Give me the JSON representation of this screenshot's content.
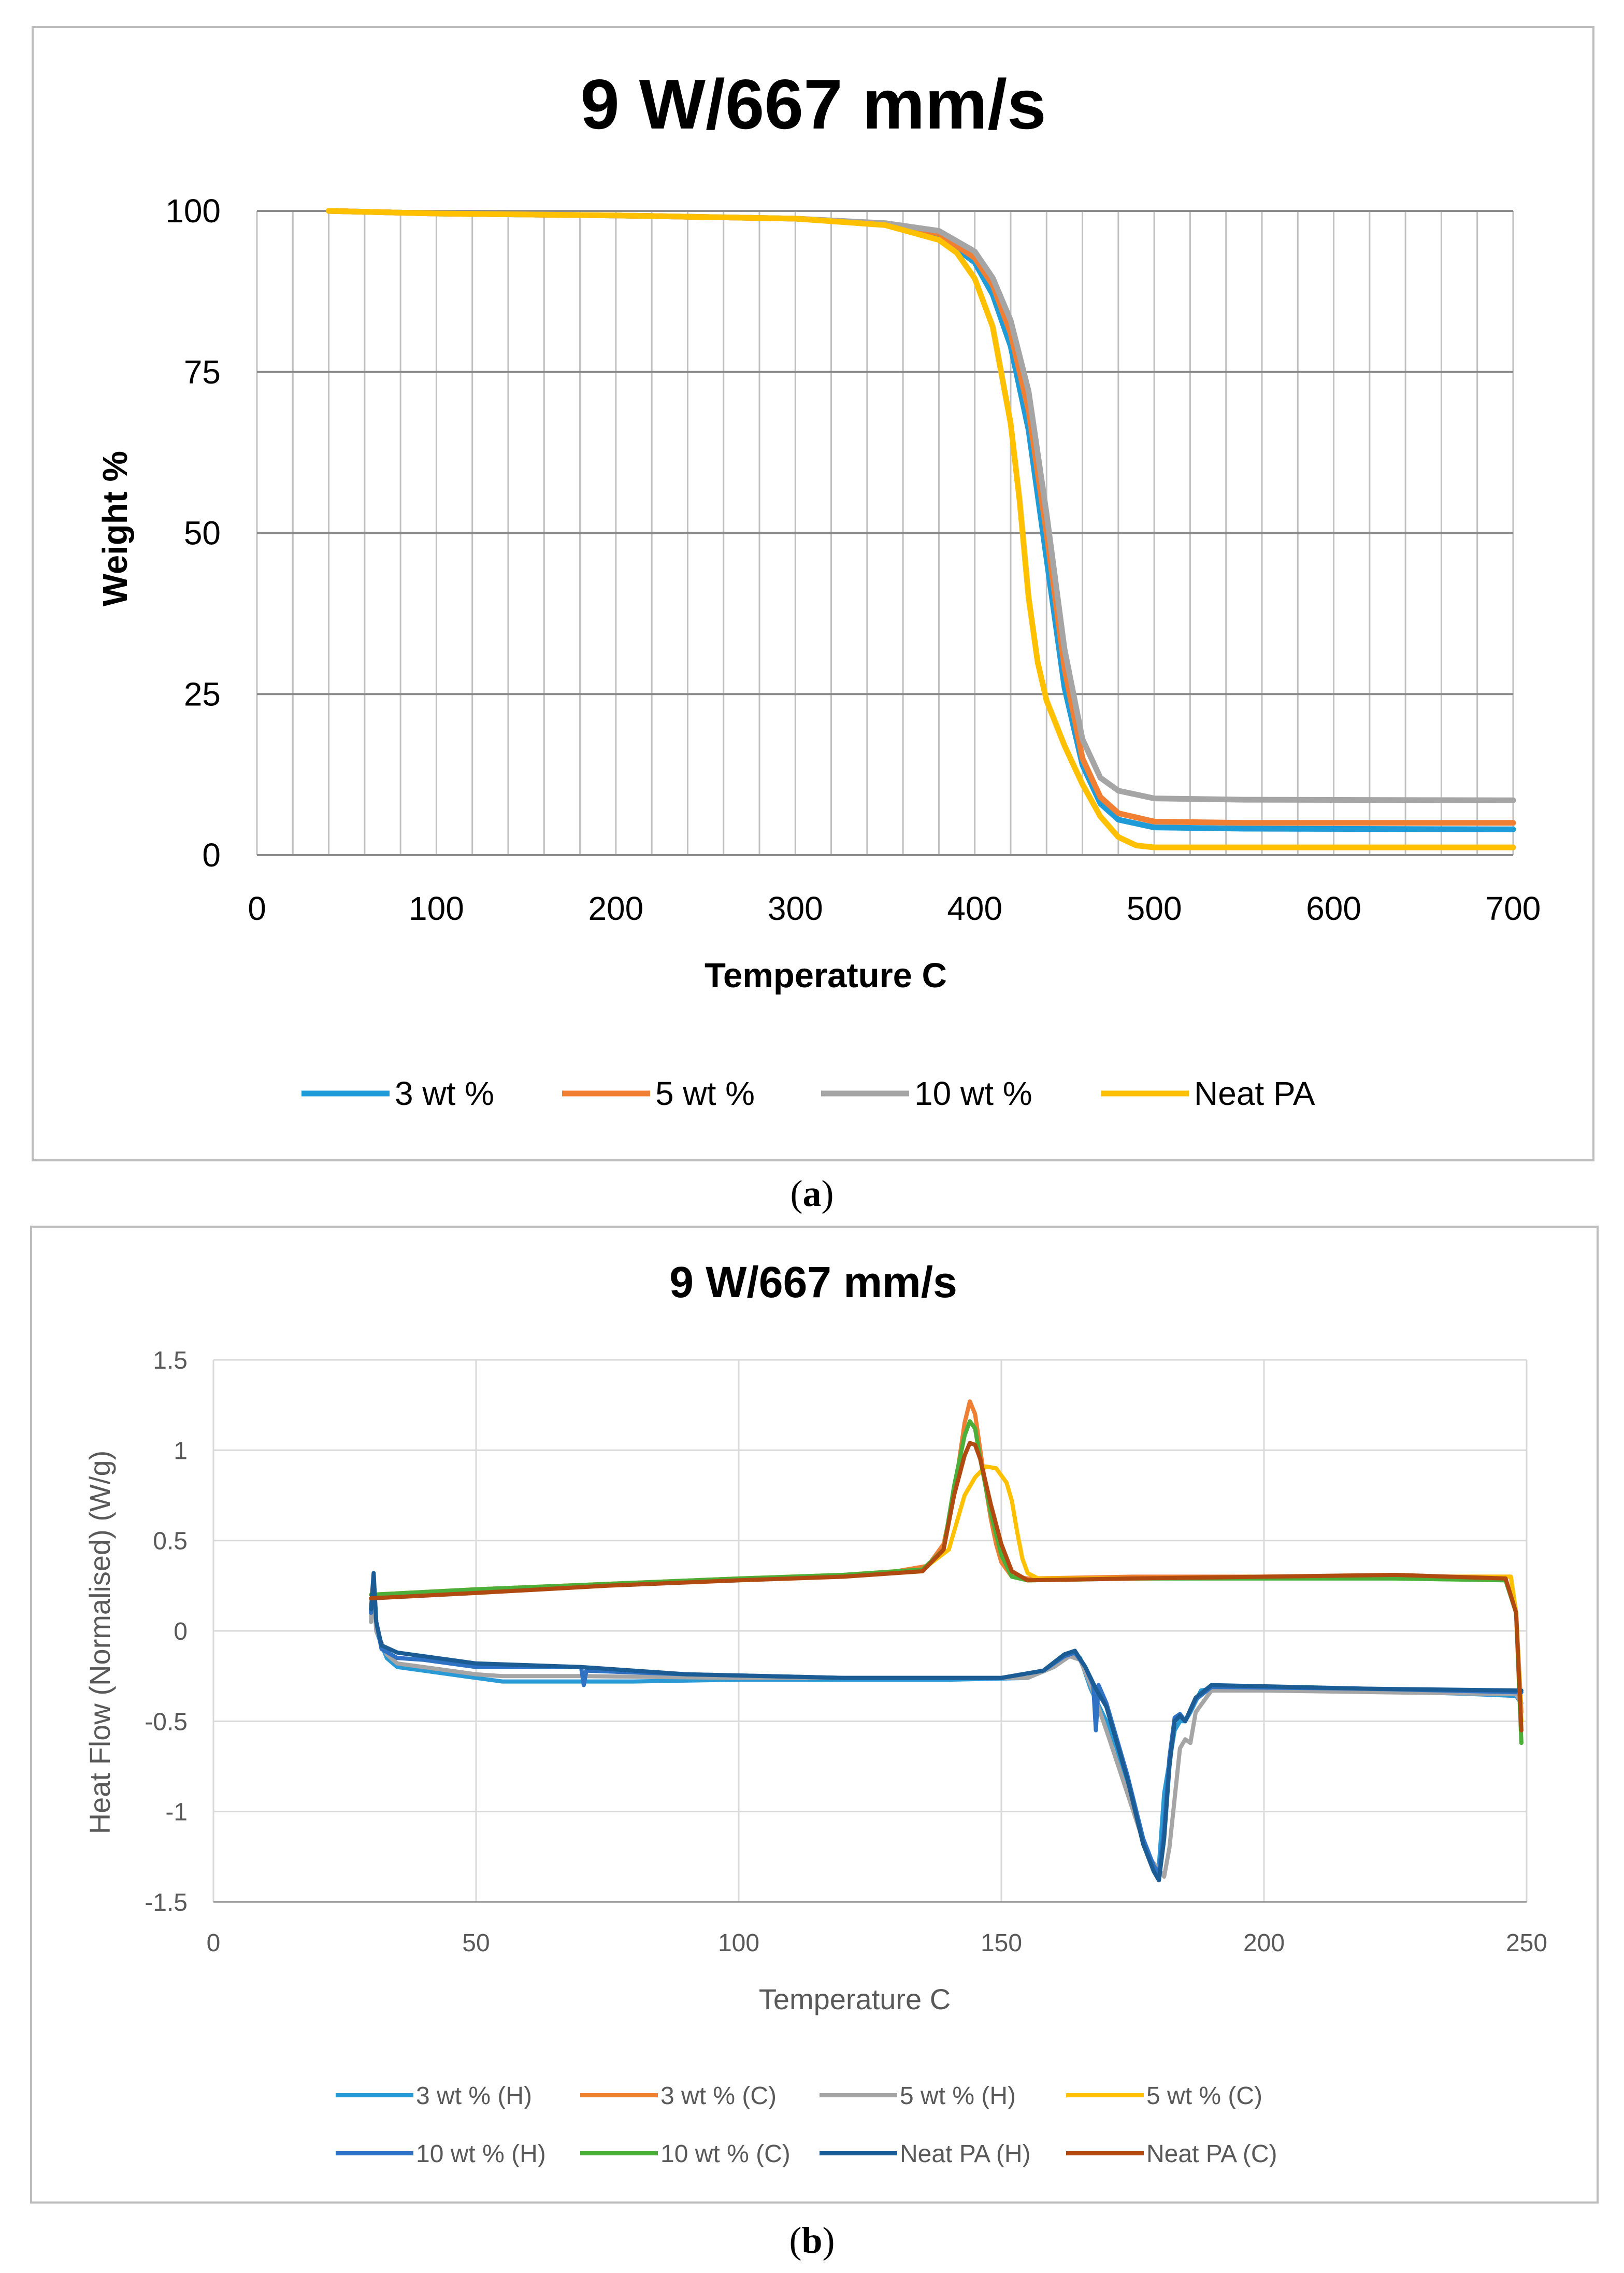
{
  "colors": {
    "c3": "#1f9bd8",
    "c5": "#f07e33",
    "c10": "#a5a5a5",
    "cneat": "#ffc000",
    "dsc_3h": "#2a9ad6",
    "dsc_3c": "#f07e33",
    "dsc_5h": "#a5a5a5",
    "dsc_5c": "#ffc000",
    "dsc_10h": "#2f72c4",
    "dsc_10c": "#4caf3a",
    "dsc_neath": "#1c5c94",
    "dsc_neatc": "#b04a10"
  },
  "captions": {
    "a": "a",
    "b": "b"
  },
  "chart_data": [
    {
      "type": "line",
      "panel": "a",
      "title": "9 W/667 mm/s",
      "xlabel": "Temperature C",
      "ylabel": "Weight %",
      "xlim": [
        0,
        700
      ],
      "ylim": [
        0,
        100
      ],
      "xticks": [
        0,
        100,
        200,
        300,
        400,
        500,
        600,
        700
      ],
      "yticks": [
        0,
        25,
        50,
        75,
        100
      ],
      "grid": "vertical every 20 and horizontal at y ticks",
      "legend": "bottom",
      "series": [
        {
          "name": "3 wt %",
          "color": "c3",
          "x": [
            40,
            100,
            200,
            300,
            350,
            380,
            400,
            410,
            420,
            430,
            440,
            450,
            460,
            470,
            480,
            500,
            550,
            700
          ],
          "y": [
            100,
            99.6,
            99.3,
            98.8,
            97.9,
            96.2,
            92,
            87,
            79,
            66,
            46,
            26,
            14,
            8,
            5.5,
            4.3,
            4.1,
            4
          ]
        },
        {
          "name": "5 wt %",
          "color": "c5",
          "x": [
            40,
            100,
            200,
            300,
            350,
            380,
            400,
            410,
            420,
            430,
            440,
            450,
            460,
            470,
            480,
            500,
            550,
            700
          ],
          "y": [
            100,
            99.6,
            99.3,
            98.8,
            98,
            96.5,
            92.7,
            88.5,
            81,
            69,
            50,
            29,
            15,
            9,
            6.5,
            5.2,
            5,
            5
          ]
        },
        {
          "name": "10 wt %",
          "color": "c10",
          "x": [
            40,
            100,
            200,
            300,
            350,
            380,
            400,
            410,
            420,
            430,
            440,
            450,
            460,
            470,
            480,
            500,
            550,
            700
          ],
          "y": [
            100,
            99.6,
            99.3,
            98.8,
            98.1,
            96.9,
            93.7,
            89.6,
            83,
            72,
            53,
            32,
            18,
            12,
            10,
            8.8,
            8.6,
            8.5
          ]
        },
        {
          "name": "Neat PA",
          "color": "cneat",
          "x": [
            40,
            100,
            200,
            300,
            350,
            380,
            390,
            400,
            410,
            420,
            425,
            430,
            435,
            440,
            450,
            460,
            470,
            480,
            490,
            500,
            700
          ],
          "y": [
            100,
            99.6,
            99.3,
            98.8,
            97.8,
            95.5,
            93.5,
            89.5,
            82,
            67,
            55,
            40,
            30,
            24,
            17,
            11,
            6,
            2.8,
            1.5,
            1.2,
            1.2
          ]
        }
      ]
    },
    {
      "type": "line",
      "panel": "b",
      "title": "9 W/667 mm/s",
      "xlabel": "Temperature C",
      "ylabel": "Heat Flow (Normalised) (W/g)",
      "xlim": [
        0,
        250
      ],
      "ylim": [
        -1.5,
        1.5
      ],
      "xticks": [
        0,
        50,
        100,
        150,
        200,
        250
      ],
      "yticks": [
        -1.5,
        -1,
        -0.5,
        0,
        0.5,
        1,
        1.5
      ],
      "ytick_labels": [
        "-1.5",
        "-1",
        "-0.5",
        "0",
        "0.5",
        "1",
        "1.5"
      ],
      "grid": "major x and y",
      "legend": "bottom",
      "series": [
        {
          "name": "3 wt % (H)",
          "color": "dsc_3h",
          "x": [
            30,
            30.5,
            31,
            33,
            35,
            40,
            50,
            55,
            60,
            70,
            80,
            100,
            120,
            140,
            155,
            160,
            163,
            165,
            167,
            168,
            170,
            172,
            174,
            176,
            178,
            179,
            180,
            181,
            183,
            184,
            185,
            186,
            188,
            190,
            200,
            220,
            240,
            248,
            249
          ],
          "y": [
            0.05,
            0.25,
            0.0,
            -0.15,
            -0.2,
            -0.22,
            -0.26,
            -0.28,
            -0.28,
            -0.28,
            -0.28,
            -0.27,
            -0.27,
            -0.27,
            -0.26,
            -0.2,
            -0.13,
            -0.15,
            -0.32,
            -0.38,
            -0.5,
            -0.65,
            -0.85,
            -1.05,
            -1.25,
            -1.33,
            -1.3,
            -0.9,
            -0.55,
            -0.5,
            -0.5,
            -0.45,
            -0.33,
            -0.32,
            -0.32,
            -0.33,
            -0.35,
            -0.36,
            -0.4
          ]
        },
        {
          "name": "3 wt % (C)",
          "color": "dsc_3c",
          "x": [
            30,
            50,
            75,
            100,
            120,
            130,
            136,
            139,
            141,
            142,
            143,
            144,
            145,
            146,
            147,
            148,
            149,
            150,
            152,
            155,
            175,
            200,
            225,
            247,
            248,
            249
          ],
          "y": [
            0.2,
            0.23,
            0.26,
            0.29,
            0.31,
            0.33,
            0.36,
            0.48,
            0.75,
            0.95,
            1.15,
            1.27,
            1.2,
            1.0,
            0.8,
            0.62,
            0.48,
            0.38,
            0.3,
            0.29,
            0.3,
            0.3,
            0.3,
            0.3,
            0.1,
            -0.45
          ]
        },
        {
          "name": "5 wt % (H)",
          "color": "dsc_5h",
          "x": [
            30,
            30.5,
            31,
            33,
            35,
            40,
            50,
            55,
            70,
            100,
            140,
            155,
            160,
            163,
            165,
            167,
            170,
            174,
            178,
            180,
            181,
            182,
            184,
            185,
            186,
            187,
            190,
            200,
            248,
            249
          ],
          "y": [
            0.05,
            0.22,
            0.0,
            -0.13,
            -0.18,
            -0.2,
            -0.24,
            -0.25,
            -0.25,
            -0.26,
            -0.26,
            -0.26,
            -0.2,
            -0.14,
            -0.16,
            -0.3,
            -0.55,
            -0.9,
            -1.25,
            -1.32,
            -1.36,
            -1.2,
            -0.65,
            -0.6,
            -0.62,
            -0.45,
            -0.33,
            -0.33,
            -0.35,
            -0.4
          ]
        },
        {
          "name": "5 wt % (C)",
          "color": "dsc_5c",
          "x": [
            30,
            50,
            75,
            100,
            120,
            135,
            140,
            143,
            145,
            147,
            149,
            151,
            152,
            153,
            154,
            155,
            157,
            175,
            200,
            225,
            247,
            248,
            249
          ],
          "y": [
            0.2,
            0.23,
            0.26,
            0.29,
            0.31,
            0.34,
            0.45,
            0.75,
            0.85,
            0.91,
            0.9,
            0.82,
            0.72,
            0.55,
            0.4,
            0.32,
            0.29,
            0.29,
            0.3,
            0.3,
            0.3,
            0.1,
            -0.5
          ]
        },
        {
          "name": "10 wt % (H)",
          "color": "dsc_10h",
          "x": [
            30,
            30.5,
            31,
            32,
            35,
            40,
            50,
            60,
            70,
            70.5,
            71,
            90,
            120,
            150,
            158,
            162,
            164,
            166,
            167.5,
            168,
            168.5,
            170,
            174,
            177,
            179,
            180,
            181,
            182,
            183,
            184,
            185,
            187,
            190,
            220,
            249
          ],
          "y": [
            0.1,
            0.3,
            0.05,
            -0.1,
            -0.15,
            -0.16,
            -0.2,
            -0.2,
            -0.2,
            -0.3,
            -0.22,
            -0.24,
            -0.26,
            -0.26,
            -0.22,
            -0.14,
            -0.12,
            -0.2,
            -0.3,
            -0.55,
            -0.3,
            -0.4,
            -0.8,
            -1.15,
            -1.3,
            -1.34,
            -1.1,
            -0.7,
            -0.48,
            -0.46,
            -0.5,
            -0.38,
            -0.31,
            -0.32,
            -0.34
          ]
        },
        {
          "name": "10 wt % (C)",
          "color": "dsc_10c",
          "x": [
            30,
            50,
            75,
            100,
            120,
            135,
            139,
            141,
            143,
            144,
            145,
            146,
            148,
            150,
            152,
            155,
            175,
            200,
            225,
            246,
            248,
            249
          ],
          "y": [
            0.2,
            0.23,
            0.26,
            0.29,
            0.31,
            0.34,
            0.45,
            0.8,
            1.08,
            1.16,
            1.12,
            0.95,
            0.65,
            0.42,
            0.3,
            0.28,
            0.29,
            0.29,
            0.29,
            0.28,
            0.1,
            -0.62
          ]
        },
        {
          "name": "Neat PA (H)",
          "color": "dsc_neath",
          "x": [
            30,
            30.5,
            31,
            32,
            35,
            40,
            50,
            60,
            70,
            90,
            120,
            150,
            158,
            162,
            164,
            166,
            168,
            170,
            174,
            177,
            179,
            180,
            181,
            182,
            183,
            184,
            185,
            187,
            190,
            220,
            249
          ],
          "y": [
            0.12,
            0.32,
            0.05,
            -0.08,
            -0.12,
            -0.14,
            -0.18,
            -0.19,
            -0.2,
            -0.24,
            -0.26,
            -0.26,
            -0.22,
            -0.13,
            -0.11,
            -0.2,
            -0.32,
            -0.42,
            -0.82,
            -1.18,
            -1.33,
            -1.38,
            -1.15,
            -0.75,
            -0.5,
            -0.47,
            -0.5,
            -0.37,
            -0.3,
            -0.32,
            -0.33
          ]
        },
        {
          "name": "Neat PA (C)",
          "color": "dsc_neatc",
          "x": [
            30,
            50,
            75,
            100,
            120,
            135,
            139,
            141,
            143,
            144,
            145,
            146,
            148,
            150,
            152,
            155,
            175,
            200,
            225,
            246,
            248,
            249
          ],
          "y": [
            0.18,
            0.21,
            0.25,
            0.28,
            0.3,
            0.33,
            0.45,
            0.75,
            0.97,
            1.04,
            1.03,
            0.95,
            0.7,
            0.48,
            0.33,
            0.28,
            0.29,
            0.3,
            0.31,
            0.29,
            0.1,
            -0.55
          ]
        }
      ]
    }
  ]
}
